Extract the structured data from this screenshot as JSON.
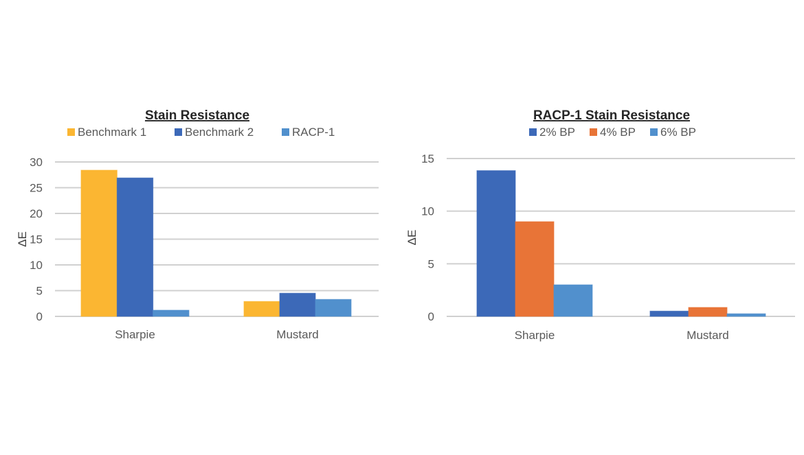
{
  "chart_data": [
    {
      "type": "bar",
      "title": "Stain Resistance",
      "xlabel": "",
      "ylabel": "ΔE",
      "ylim": [
        0,
        30
      ],
      "yticks": [
        0,
        5,
        10,
        15,
        20,
        25,
        30
      ],
      "grid": true,
      "legend_position": "top",
      "categories": [
        "Sharpie",
        "Mustard"
      ],
      "series": [
        {
          "name": "Benchmark 1",
          "color": "#FBB632",
          "values": [
            28.4,
            2.9
          ]
        },
        {
          "name": "Benchmark 2",
          "color": "#3C69B8",
          "values": [
            26.9,
            4.5
          ]
        },
        {
          "name": "RACP-1",
          "color": "#5190CD",
          "values": [
            1.2,
            3.3
          ]
        }
      ]
    },
    {
      "type": "bar",
      "title": "RACP-1 Stain Resistance",
      "xlabel": "",
      "ylabel": "ΔE",
      "ylim": [
        0,
        15
      ],
      "yticks": [
        0,
        5,
        10,
        15
      ],
      "grid": true,
      "legend_position": "top",
      "categories": [
        "Sharpie",
        "Mustard"
      ],
      "series": [
        {
          "name": "2% BP",
          "color": "#3C69B8",
          "values": [
            13.85,
            0.5
          ]
        },
        {
          "name": "4% BP",
          "color": "#E87437",
          "values": [
            9.0,
            0.85
          ]
        },
        {
          "name": "6% BP",
          "color": "#5190CD",
          "values": [
            3.0,
            0.25
          ]
        }
      ]
    }
  ]
}
